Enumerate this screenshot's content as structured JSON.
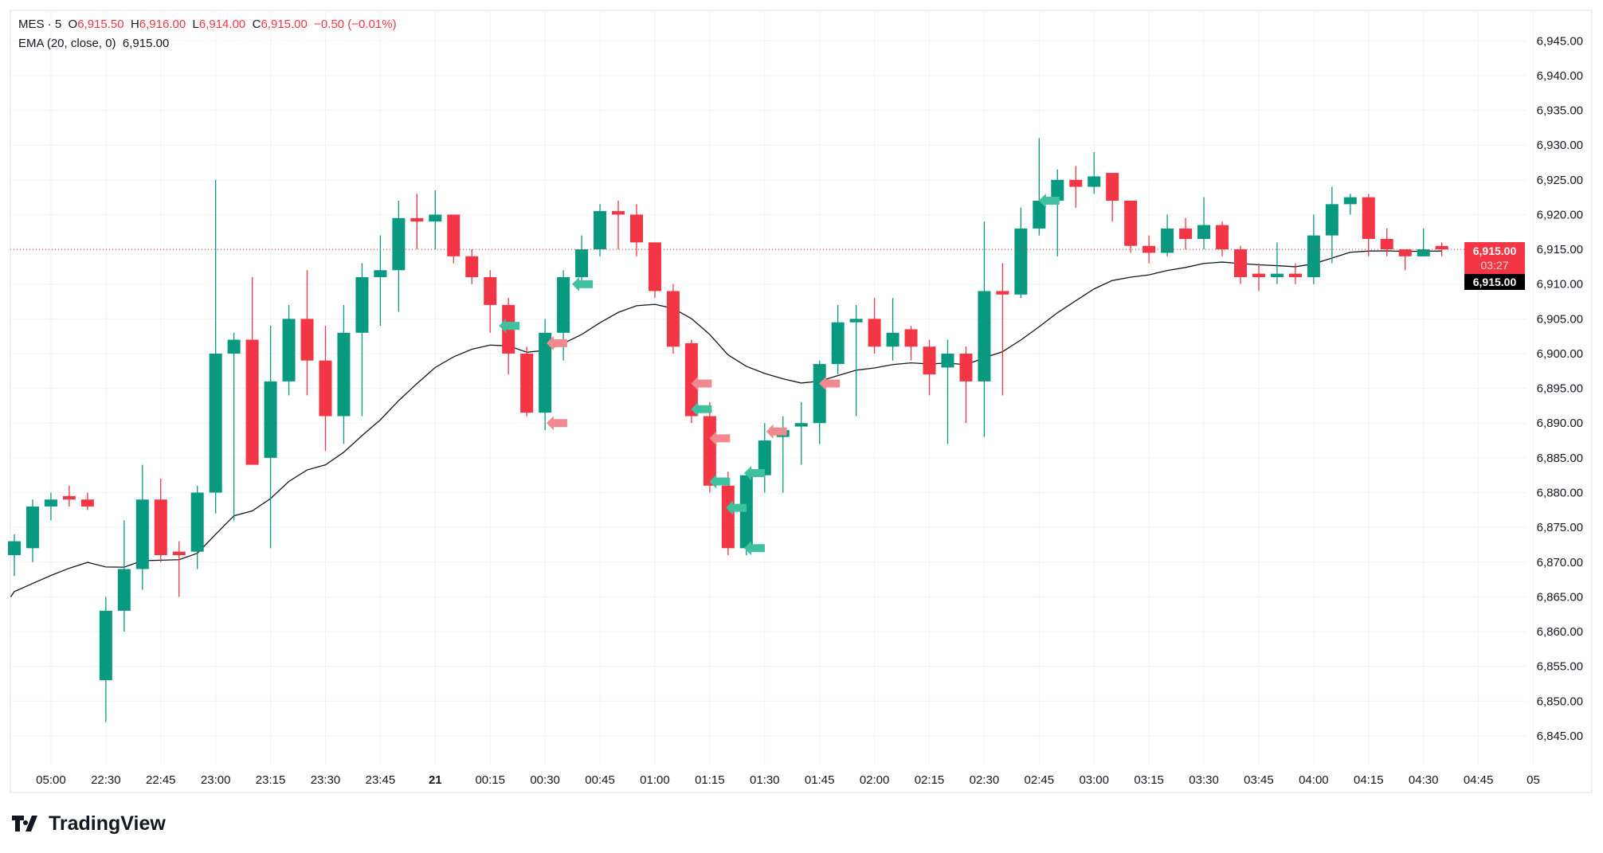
{
  "legend": {
    "symbol": "MES · 5",
    "open_label": "O",
    "open": "6,915.50",
    "high_label": "H",
    "high": "6,916.00",
    "low_label": "L",
    "low": "6,914.00",
    "close_label": "C",
    "close": "6,915.00",
    "change": "−0.50 (−0.01%)",
    "ema_label": "EMA (20, close, 0)",
    "ema_value": "6,915.00"
  },
  "price_labels": {
    "last": "6,915.00",
    "countdown": "03:27",
    "ema": "6,915.00"
  },
  "branding": "TradingView",
  "colors": {
    "up": "#089981",
    "down": "#F23645",
    "buy_marker": "#3fc1a0",
    "sell_marker": "#f08a8f",
    "ema": "#131722"
  },
  "chart_data": {
    "type": "candlestick",
    "yticks": [
      "6,845.00",
      "6,850.00",
      "6,855.00",
      "6,860.00",
      "6,865.00",
      "6,870.00",
      "6,875.00",
      "6,880.00",
      "6,885.00",
      "6,890.00",
      "6,895.00",
      "6,900.00",
      "6,905.00",
      "6,910.00",
      "6,915.00",
      "6,920.00",
      "6,925.00",
      "6,930.00",
      "6,935.00",
      "6,940.00",
      "6,945.00"
    ],
    "ylim": [
      6840,
      6948
    ],
    "xticks": [
      "05:00",
      "22:30",
      "22:45",
      "23:00",
      "23:15",
      "23:30",
      "23:45",
      "21",
      "00:15",
      "00:30",
      "00:45",
      "01:00",
      "01:15",
      "01:30",
      "01:45",
      "02:00",
      "02:15",
      "02:30",
      "02:45",
      "03:00",
      "03:15",
      "03:30",
      "03:45",
      "04:00",
      "04:15",
      "04:30",
      "04:45",
      "05"
    ],
    "last_price": 6915,
    "ema_period": 20,
    "ema_seed": 6865,
    "ohlc": [
      [
        6871,
        6874,
        6868,
        6873
      ],
      [
        6872,
        6879,
        6870,
        6878
      ],
      [
        6878,
        6880,
        6876,
        6879
      ],
      [
        6879.5,
        6881,
        6878,
        6879
      ],
      [
        6879,
        6880,
        6877.5,
        6878
      ],
      [
        6853,
        6865,
        6847,
        6863
      ],
      [
        6863,
        6876,
        6860,
        6869
      ],
      [
        6869,
        6884,
        6866,
        6879
      ],
      [
        6879,
        6882,
        6870,
        6871
      ],
      [
        6871.5,
        6873,
        6865,
        6871
      ],
      [
        6871.5,
        6881,
        6869,
        6880
      ],
      [
        6880,
        6925,
        6877,
        6900
      ],
      [
        6900,
        6903,
        6876,
        6902
      ],
      [
        6902,
        6911,
        6884,
        6884
      ],
      [
        6885,
        6904,
        6872,
        6896
      ],
      [
        6896,
        6907,
        6894,
        6905
      ],
      [
        6905,
        6912,
        6894,
        6899
      ],
      [
        6899,
        6904,
        6886,
        6891
      ],
      [
        6891,
        6907,
        6887,
        6903
      ],
      [
        6903,
        6913,
        6891,
        6911
      ],
      [
        6911,
        6917,
        6904,
        6912
      ],
      [
        6912,
        6922,
        6906,
        6919.5
      ],
      [
        6919.5,
        6923,
        6915,
        6919
      ],
      [
        6919,
        6923.5,
        6915,
        6920
      ],
      [
        6920,
        6920,
        6913,
        6914
      ],
      [
        6914,
        6915,
        6910,
        6911
      ],
      [
        6911,
        6912,
        6903,
        6907
      ],
      [
        6907,
        6908,
        6897,
        6900
      ],
      [
        6900,
        6901,
        6891,
        6891.5
      ],
      [
        6891.5,
        6905,
        6889,
        6903
      ],
      [
        6903,
        6912,
        6899,
        6911
      ],
      [
        6911,
        6917,
        6910,
        6915
      ],
      [
        6915,
        6921.5,
        6914,
        6920.5
      ],
      [
        6920.5,
        6922,
        6915,
        6920
      ],
      [
        6920,
        6921.5,
        6914,
        6916
      ],
      [
        6916,
        6916,
        6908,
        6909
      ],
      [
        6909,
        6910,
        6900,
        6901
      ],
      [
        6901.5,
        6902,
        6890,
        6891
      ],
      [
        6891,
        6893,
        6880,
        6881
      ],
      [
        6881,
        6883,
        6871,
        6872
      ],
      [
        6872,
        6883,
        6871,
        6882.5
      ],
      [
        6882.5,
        6890,
        6880,
        6887.5
      ],
      [
        6888,
        6891,
        6880,
        6889
      ],
      [
        6889.5,
        6893,
        6884,
        6890
      ],
      [
        6890,
        6899,
        6887,
        6898.5
      ],
      [
        6898.5,
        6907,
        6897,
        6904.5
      ],
      [
        6904.5,
        6907,
        6891,
        6905
      ],
      [
        6905,
        6908,
        6900,
        6901
      ],
      [
        6901,
        6908,
        6899,
        6903
      ],
      [
        6903.5,
        6904,
        6899,
        6901
      ],
      [
        6901,
        6902,
        6894,
        6897
      ],
      [
        6898,
        6902,
        6887,
        6900
      ],
      [
        6900,
        6901,
        6890,
        6896
      ],
      [
        6896,
        6919,
        6888,
        6909
      ],
      [
        6909,
        6913,
        6894,
        6908.5
      ],
      [
        6908.5,
        6921,
        6908,
        6918
      ],
      [
        6918,
        6931,
        6917,
        6922
      ],
      [
        6922,
        6926.5,
        6914,
        6925
      ],
      [
        6925,
        6927,
        6921,
        6924
      ],
      [
        6924,
        6929,
        6923,
        6925.5
      ],
      [
        6926,
        6926,
        6919,
        6922
      ],
      [
        6922,
        6922,
        6914.5,
        6915.5
      ],
      [
        6915.5,
        6917,
        6913,
        6914.5
      ],
      [
        6914.5,
        6920,
        6914,
        6918
      ],
      [
        6918,
        6919.5,
        6915,
        6916.5
      ],
      [
        6916.5,
        6922.5,
        6915,
        6918.5
      ],
      [
        6918.5,
        6919,
        6914,
        6915
      ],
      [
        6915,
        6915.5,
        6910,
        6911
      ],
      [
        6911.5,
        6913,
        6909,
        6911
      ],
      [
        6911,
        6916,
        6910,
        6911.5
      ],
      [
        6911.5,
        6913,
        6910,
        6911
      ],
      [
        6911,
        6920,
        6910,
        6917
      ],
      [
        6917,
        6924,
        6913,
        6921.5
      ],
      [
        6921.5,
        6923,
        6920,
        6922.5
      ],
      [
        6922.5,
        6923,
        6914,
        6916.5
      ],
      [
        6916.5,
        6918,
        6914,
        6915
      ],
      [
        6915,
        6915,
        6912,
        6914
      ],
      [
        6914,
        6918,
        6914,
        6915
      ],
      [
        6915.5,
        6916,
        6914,
        6915
      ]
    ],
    "markers": [
      {
        "i": 27,
        "price": 6904,
        "side": "buy"
      },
      {
        "i": 31,
        "price": 6910,
        "side": "buy"
      },
      {
        "i": 37.5,
        "price": 6892,
        "side": "buy"
      },
      {
        "i": 38.5,
        "price": 6881.6,
        "side": "buy"
      },
      {
        "i": 39.4,
        "price": 6877.8,
        "side": "buy"
      },
      {
        "i": 40.4,
        "price": 6882.8,
        "side": "buy"
      },
      {
        "i": 40.4,
        "price": 6872,
        "side": "buy"
      },
      {
        "i": 56.5,
        "price": 6922,
        "side": "buy"
      },
      {
        "i": 29.6,
        "price": 6901.5,
        "side": "sell"
      },
      {
        "i": 29.6,
        "price": 6890,
        "side": "sell"
      },
      {
        "i": 37.5,
        "price": 6895.7,
        "side": "sell"
      },
      {
        "i": 38.5,
        "price": 6887.8,
        "side": "sell"
      },
      {
        "i": 41.6,
        "price": 6888.8,
        "side": "sell"
      },
      {
        "i": 44.5,
        "price": 6895.7,
        "side": "sell"
      }
    ]
  }
}
